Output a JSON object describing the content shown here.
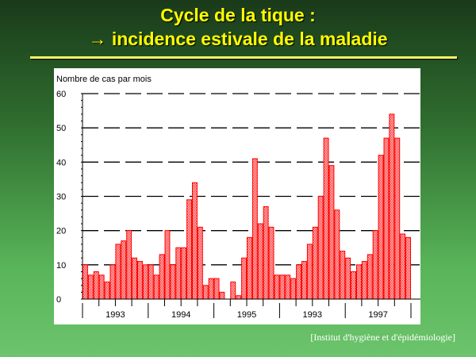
{
  "slide": {
    "title_line1": "Cycle de la tique :",
    "title_line2": "→ incidence estivale de la maladie",
    "credit": "[Institut d'hygiène et d'épidémiologie]"
  },
  "chart_data": {
    "type": "bar",
    "title": "",
    "ylabel": "Nombre de cas par mois",
    "xlabel": "",
    "ylim": [
      0,
      60
    ],
    "yticks": [
      0,
      10,
      20,
      30,
      40,
      50,
      60
    ],
    "year_labels": [
      "1993",
      "1994",
      "1995",
      "1993",
      "1997"
    ],
    "values": [
      10,
      7,
      8,
      7,
      5,
      10,
      16,
      17,
      20,
      12,
      11,
      10,
      10,
      7,
      13,
      20,
      10,
      15,
      15,
      29,
      34,
      21,
      4,
      6,
      6,
      2,
      0,
      5,
      1,
      12,
      18,
      41,
      22,
      27,
      21,
      7,
      7,
      7,
      6,
      10,
      11,
      16,
      21,
      30,
      47,
      39,
      26,
      14,
      12,
      8,
      10,
      11,
      13,
      20,
      42,
      47,
      54,
      47,
      19,
      18
    ],
    "grid": true,
    "bar_color": "#ff0000"
  }
}
